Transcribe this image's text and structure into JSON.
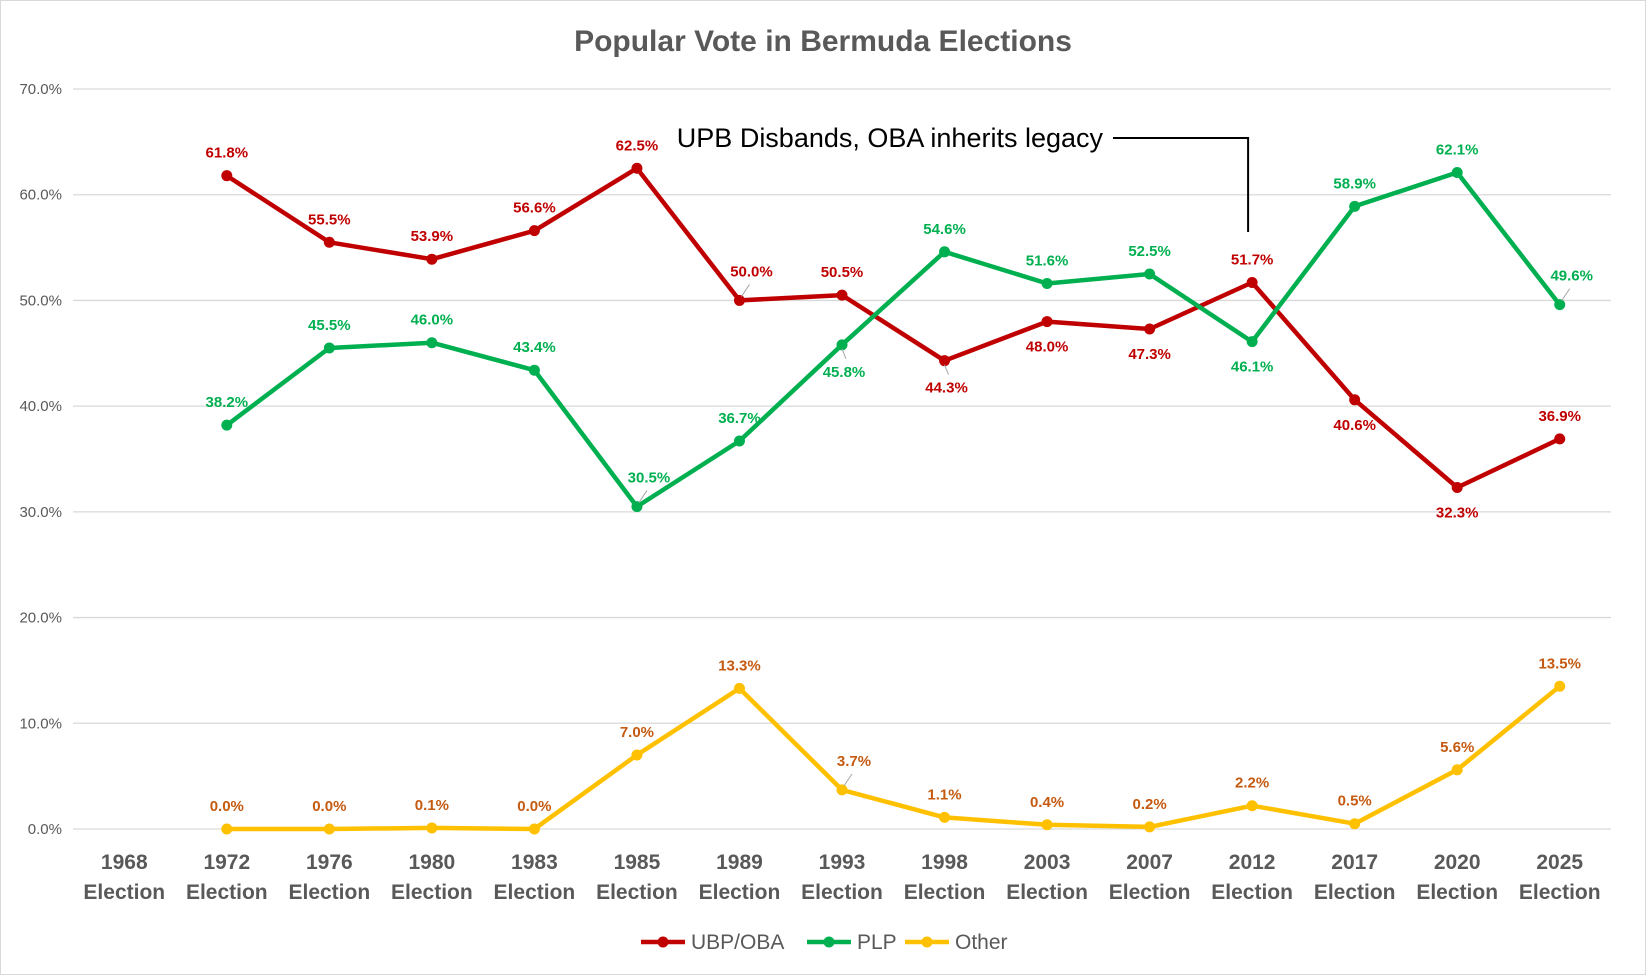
{
  "chart_data": {
    "type": "line",
    "title": "Popular Vote in Bermuda Elections",
    "xlabel": "",
    "ylabel": "",
    "ylim": [
      0,
      70
    ],
    "y_ticks": [
      "0.0%",
      "10.0%",
      "20.0%",
      "30.0%",
      "40.0%",
      "50.0%",
      "60.0%",
      "70.0%"
    ],
    "grid": "horizontal",
    "legend_position": "bottom",
    "categories": [
      [
        "1968",
        "Election"
      ],
      [
        "1972",
        "Election"
      ],
      [
        "1976",
        "Election"
      ],
      [
        "1980",
        "Election"
      ],
      [
        "1983",
        "Election"
      ],
      [
        "1985",
        "Election"
      ],
      [
        "1989",
        "Election"
      ],
      [
        "1993",
        "Election"
      ],
      [
        "1998",
        "Election"
      ],
      [
        "2003",
        "Election"
      ],
      [
        "2007",
        "Election"
      ],
      [
        "2012",
        "Election"
      ],
      [
        "2017",
        "Election"
      ],
      [
        "2020",
        "Election"
      ],
      [
        "2025",
        "Election"
      ]
    ],
    "series": [
      {
        "name": "UBP/OBA",
        "color": "#c00000",
        "values": [
          null,
          61.8,
          55.5,
          53.9,
          56.6,
          62.5,
          50.0,
          50.5,
          44.3,
          48.0,
          47.3,
          51.7,
          40.6,
          32.3,
          36.9
        ],
        "labels": [
          "",
          "61.8%",
          "55.5%",
          "53.9%",
          "56.6%",
          "62.5%",
          "50.0%",
          "50.5%",
          "44.3%",
          "48.0%",
          "47.3%",
          "51.7%",
          "40.6%",
          "32.3%",
          "36.9%"
        ]
      },
      {
        "name": "PLP",
        "color": "#00b050",
        "values": [
          null,
          38.2,
          45.5,
          46.0,
          43.4,
          30.5,
          36.7,
          45.8,
          54.6,
          51.6,
          52.5,
          46.1,
          58.9,
          62.1,
          49.6
        ],
        "labels": [
          "",
          "38.2%",
          "45.5%",
          "46.0%",
          "43.4%",
          "30.5%",
          "36.7%",
          "45.8%",
          "54.6%",
          "51.6%",
          "52.5%",
          "46.1%",
          "58.9%",
          "62.1%",
          "49.6%"
        ]
      },
      {
        "name": "Other",
        "color": "#ffc000",
        "label_color": "#c55a11",
        "values": [
          null,
          0.0,
          0.0,
          0.1,
          0.0,
          7.0,
          13.3,
          3.7,
          1.1,
          0.4,
          0.2,
          2.2,
          0.5,
          5.6,
          13.5
        ],
        "labels": [
          "",
          "0.0%",
          "0.0%",
          "0.1%",
          "0.0%",
          "7.0%",
          "13.3%",
          "3.7%",
          "1.1%",
          "0.4%",
          "0.2%",
          "2.2%",
          "0.5%",
          "5.6%",
          "13.5%"
        ]
      }
    ],
    "annotations": [
      {
        "text": "UPB Disbands, OBA inherits legacy",
        "points_to": "2012 Election"
      }
    ]
  }
}
